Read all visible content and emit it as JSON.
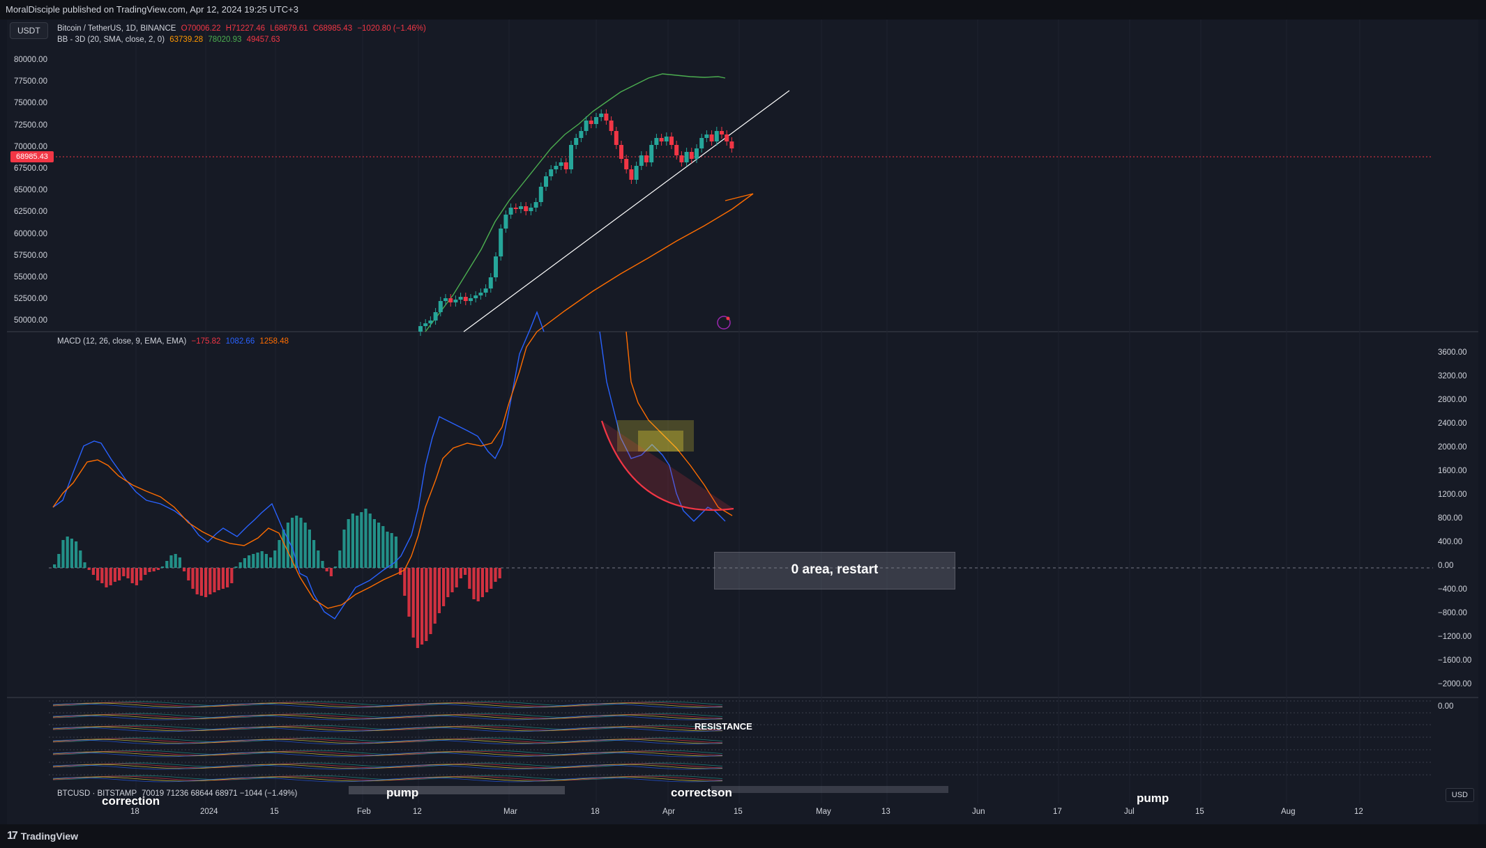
{
  "header": {
    "publisher": "MoralDisciple published on TradingView.com, Apr 12, 2024 19:25 UTC+3"
  },
  "toolbar": {
    "currency_pill": "USDT",
    "currency_button": "USD"
  },
  "legend": {
    "symbol": "Bitcoin / TetherUS, 1D, BINANCE",
    "open": "O70006.22",
    "high": "H71227.46",
    "low": "L68679.61",
    "close": "C68985.43",
    "change": "−1020.80 (−1.46%)",
    "bb_label": "BB - 3D (20, SMA, close, 2, 0)",
    "bb_basis": "63739.28",
    "bb_upper": "78020.93",
    "bb_lower": "49457.63",
    "macd_label": "MACD (12, 26, close, 9, EMA, EMA)",
    "macd_hist": "−175.82",
    "macd_line": "1082.66",
    "macd_signal": "1258.48",
    "btcusd_label": "BTCUSD · BITSTAMP",
    "btcusd_values": "70019  71236  68644  68971  −1044 (−1.49%)"
  },
  "price_axis": {
    "current": "68985.43",
    "labels": [
      "80000.00",
      "77500.00",
      "75000.00",
      "72500.00",
      "70000.00",
      "67500.00",
      "65000.00",
      "62500.00",
      "60000.00",
      "57500.00",
      "55000.00",
      "52500.00",
      "50000.00"
    ]
  },
  "macd_axis": {
    "labels": [
      "3600.00",
      "3200.00",
      "2800.00",
      "2400.00",
      "2000.00",
      "1600.00",
      "1200.00",
      "800.00",
      "400.00",
      "0.00",
      "−400.00",
      "−800.00",
      "−1200.00",
      "−1600.00",
      "−2000.00"
    ]
  },
  "small_axis": {
    "label": "0.00"
  },
  "time_axis": {
    "labels": [
      "18",
      "2024",
      "15",
      "Feb",
      "12",
      "Mar",
      "18",
      "Apr",
      "15",
      "May",
      "13",
      "Jun",
      "17",
      "Jul",
      "15",
      "Aug",
      "12"
    ]
  },
  "annotations": {
    "zero_area": "0 area, restart",
    "resistance": "RESISTANCE",
    "pump_1": "pump",
    "pump_2": "pump",
    "correction_1": "correction",
    "correction_2": "correctson"
  },
  "footer": {
    "brand": "TradingView"
  },
  "colors": {
    "background": "#161a25",
    "up": "#26a69a",
    "down": "#f23645",
    "bb_upper": "#4caf50",
    "bb_basis": "#ff6d00",
    "macd": "#2962ff",
    "signal": "#ff6d00"
  }
}
